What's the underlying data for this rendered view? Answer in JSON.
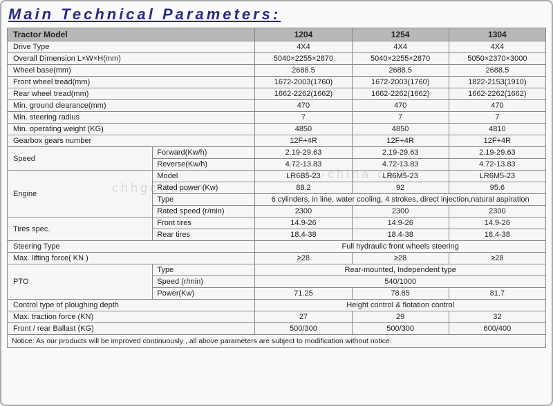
{
  "title": "Main Technical Parameters:",
  "models": [
    "1204",
    "1254",
    "1304"
  ],
  "header_label": "Tractor Model",
  "rows": {
    "drive_type": {
      "label": "Drive Type",
      "v": [
        "4X4",
        "4X4",
        "4X4"
      ]
    },
    "overall_dim": {
      "label": "Overall Dimension  L×W×H(mm)",
      "v": [
        "5040×2255×2870",
        "5040×2255×2870",
        "5050×2370×3000"
      ]
    },
    "wheel_base": {
      "label": "Wheel base(mm)",
      "v": [
        "2688.5",
        "2688.5",
        "2688.5"
      ]
    },
    "front_tread": {
      "label": "Front wheel tread(mm)",
      "v": [
        "1672-2003(1760)",
        "1672-2003(1760)",
        "1822-2153(1910)"
      ]
    },
    "rear_tread": {
      "label": "Rear wheel tread(mm)",
      "v": [
        "1662-2262(1662)",
        "1662-2262(1662)",
        "1662-2262(1662)"
      ]
    },
    "ground_clr": {
      "label": "Min. ground clearance(mm)",
      "v": [
        "470",
        "470",
        "470"
      ]
    },
    "steer_radius": {
      "label": "Min.  steering radius",
      "v": [
        "7",
        "7",
        "7"
      ]
    },
    "op_weight": {
      "label": "Min. operating weight (KG)",
      "v": [
        "4850",
        "4850",
        "4810"
      ]
    },
    "gearbox": {
      "label": "Gearbox gears number",
      "v": [
        "12F+4R",
        "12F+4R",
        "12F+4R"
      ]
    }
  },
  "speed": {
    "label": "Speed",
    "forward": {
      "label": "Forward(Kw/h)",
      "v": [
        "2.19-29.63",
        "2.19-29.63",
        "2.19-29.63"
      ]
    },
    "reverse": {
      "label": "Reverse(Kw/h)",
      "v": [
        "4.72-13.83",
        "4.72-13.83",
        "4.72-13.83"
      ]
    }
  },
  "engine": {
    "label": "Engine",
    "model": {
      "label": "Model",
      "v": [
        "LR6B5-23",
        "LR6M5-23",
        "LR6M5-23"
      ]
    },
    "rated_power": {
      "label": "Rated power (Kw)",
      "v": [
        "88.2",
        "92",
        "95.6"
      ]
    },
    "type": {
      "label": "Type",
      "span": "6 cylinders, in line, water cooling, 4 strokes, direct injection,natural aspiration"
    },
    "rated_speed": {
      "label": "Rated speed (r/min)",
      "v": [
        "2300",
        "2300",
        "2300"
      ]
    }
  },
  "tires": {
    "label": "Tires spec.",
    "front": {
      "label": "Front tires",
      "v": [
        "14.9-26",
        "14.9-26",
        "14.9-26"
      ]
    },
    "rear": {
      "label": "Rear tires",
      "v": [
        "18.4-38",
        "18.4-38",
        "18.4-38"
      ]
    }
  },
  "steering_type": {
    "label": "Steering Type",
    "span": "Full hydraulic  front wheels steering"
  },
  "max_lift": {
    "label": "Max. lifting force( KN )",
    "v": [
      "≥28",
      "≥28",
      "≥28"
    ]
  },
  "pto": {
    "label": "PTO",
    "type": {
      "label": "Type",
      "span": "Rear-mounted, Independent type"
    },
    "speed": {
      "label": "Speed (r/min)",
      "span": "540/1000"
    },
    "power": {
      "label": "Power(Kw)",
      "v": [
        "71.25",
        "78.85",
        "81.7"
      ]
    }
  },
  "plough_ctrl": {
    "label": "Control type of ploughing depth",
    "span": "Height control & flotation control"
  },
  "traction": {
    "label": "Max. traction force (KN)",
    "v": [
      "27",
      "29",
      "32"
    ]
  },
  "ballast": {
    "label": "Front / rear Ballast (KG)",
    "v": [
      "500/300",
      "500/300",
      "600/400"
    ]
  },
  "notice": "Notice: As our products will be improved continuously , all above parameters are subject to modification without notice.",
  "watermark1": "chhgcltd.en",
  "watermark2": "in-china.com",
  "colors": {
    "title": "#2a2a7a",
    "header_bg": "#b8b8b8",
    "cell_bg": "#f6f6f4",
    "border": "#888888"
  }
}
